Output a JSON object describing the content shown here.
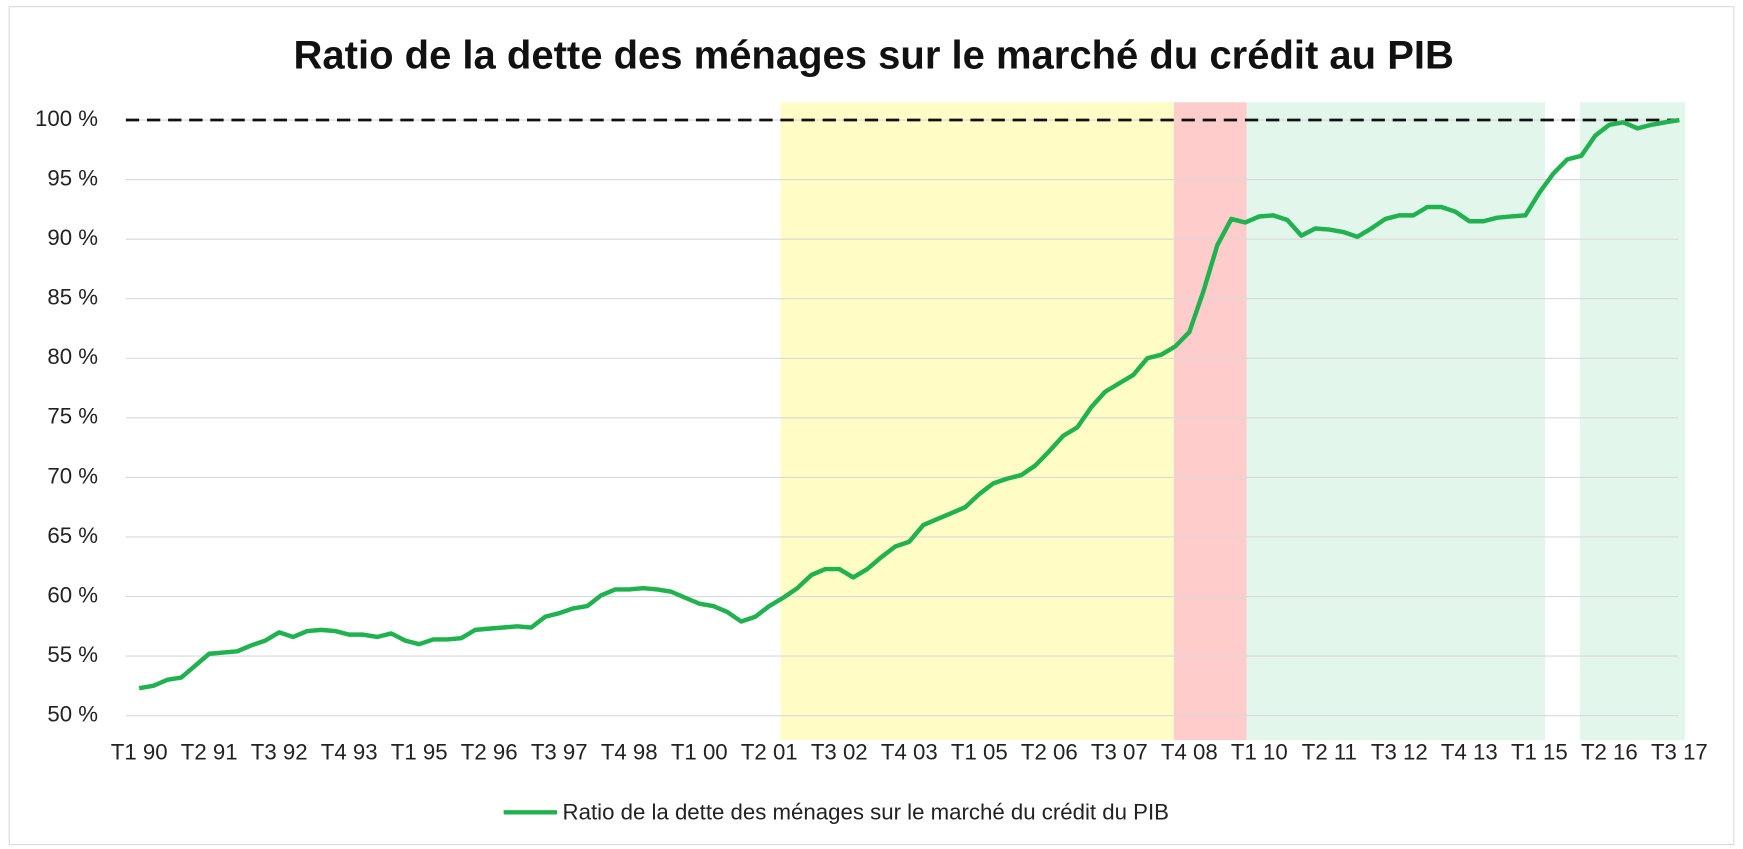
{
  "chart_data": {
    "type": "line",
    "title": "Ratio de la dette des ménages sur le marché du crédit au PIB",
    "categories": [
      "T1 90",
      null,
      null,
      null,
      null,
      "T2 91",
      null,
      null,
      null,
      null,
      "T3 92",
      null,
      null,
      null,
      null,
      "T4 93",
      null,
      null,
      null,
      null,
      "T1 95",
      null,
      null,
      null,
      null,
      "T2 96",
      null,
      null,
      null,
      null,
      "T3 97",
      null,
      null,
      null,
      null,
      "T4 98",
      null,
      null,
      null,
      null,
      "T1 00",
      null,
      null,
      null,
      null,
      "T2 01",
      null,
      null,
      null,
      null,
      "T3 02",
      null,
      null,
      null,
      null,
      "T4 03",
      null,
      null,
      null,
      null,
      "T1 05",
      null,
      null,
      null,
      null,
      "T2 06",
      null,
      null,
      null,
      null,
      "T3 07",
      null,
      null,
      null,
      null,
      "T4 08",
      null,
      null,
      null,
      null,
      "T1 10",
      null,
      null,
      null,
      null,
      "T2 11",
      null,
      null,
      null,
      null,
      "T3 12",
      null,
      null,
      null,
      null,
      "T4 13",
      null,
      null,
      null,
      null,
      "T1 15",
      null,
      null,
      null,
      null,
      "T2 16",
      null,
      null,
      null,
      null,
      "T3 17"
    ],
    "series": [
      {
        "name": "Ratio de la dette des ménages sur le marché du crédit du PIB",
        "color": "#1fb24f",
        "values": [
          52.3,
          52.5,
          53.0,
          53.2,
          54.2,
          55.2,
          55.3,
          55.4,
          55.9,
          56.3,
          57.0,
          56.6,
          57.1,
          57.2,
          57.1,
          56.8,
          56.8,
          56.6,
          56.9,
          56.3,
          56.0,
          56.4,
          56.4,
          56.5,
          57.2,
          57.3,
          57.4,
          57.5,
          57.4,
          58.3,
          58.6,
          59.0,
          59.2,
          60.1,
          60.6,
          60.6,
          60.7,
          60.6,
          60.4,
          59.9,
          59.4,
          59.2,
          58.7,
          57.9,
          58.3,
          59.2,
          59.9,
          60.7,
          61.8,
          62.3,
          62.3,
          61.6,
          62.3,
          63.3,
          64.2,
          64.6,
          66.0,
          66.5,
          67.0,
          67.5,
          68.6,
          69.5,
          69.9,
          70.2,
          71.0,
          72.2,
          73.5,
          74.2,
          75.9,
          77.2,
          77.9,
          78.6,
          80.0,
          80.3,
          81.0,
          82.2,
          85.6,
          89.5,
          91.7,
          91.4,
          91.9,
          92.0,
          91.6,
          90.3,
          90.9,
          90.8,
          90.6,
          90.2,
          90.9,
          91.7,
          92.0,
          92.0,
          92.7,
          92.7,
          92.3,
          91.5,
          91.5,
          91.8,
          91.9,
          92.0,
          93.9,
          95.5,
          96.7,
          97.0,
          98.7,
          99.6,
          99.8,
          99.3,
          99.6,
          99.8,
          100.0
        ]
      }
    ],
    "ylim": [
      50,
      100
    ],
    "yticks": [
      {
        "value": 50,
        "label": "50 %"
      },
      {
        "value": 55,
        "label": "55 %"
      },
      {
        "value": 60,
        "label": "60 %"
      },
      {
        "value": 65,
        "label": "65 %"
      },
      {
        "value": 70,
        "label": "70 %"
      },
      {
        "value": 75,
        "label": "75 %"
      },
      {
        "value": 80,
        "label": "80 %"
      },
      {
        "value": 85,
        "label": "85 %"
      },
      {
        "value": 90,
        "label": "90 %"
      },
      {
        "value": 95,
        "label": "95 %"
      },
      {
        "value": 100,
        "label": "100 %"
      }
    ],
    "grid": true,
    "reference_line": 100,
    "bands": [
      {
        "from": 45.8,
        "to": 73.9,
        "color": "#fffcc6"
      },
      {
        "from": 73.9,
        "to": 79.1,
        "color": "#ffcccc"
      },
      {
        "from": 79.1,
        "to": 100.4,
        "color": "#e3f6ec"
      },
      {
        "from": 102.9,
        "to": 110.4,
        "color": "#e3f6ec"
      }
    ],
    "legend": "bottom"
  }
}
